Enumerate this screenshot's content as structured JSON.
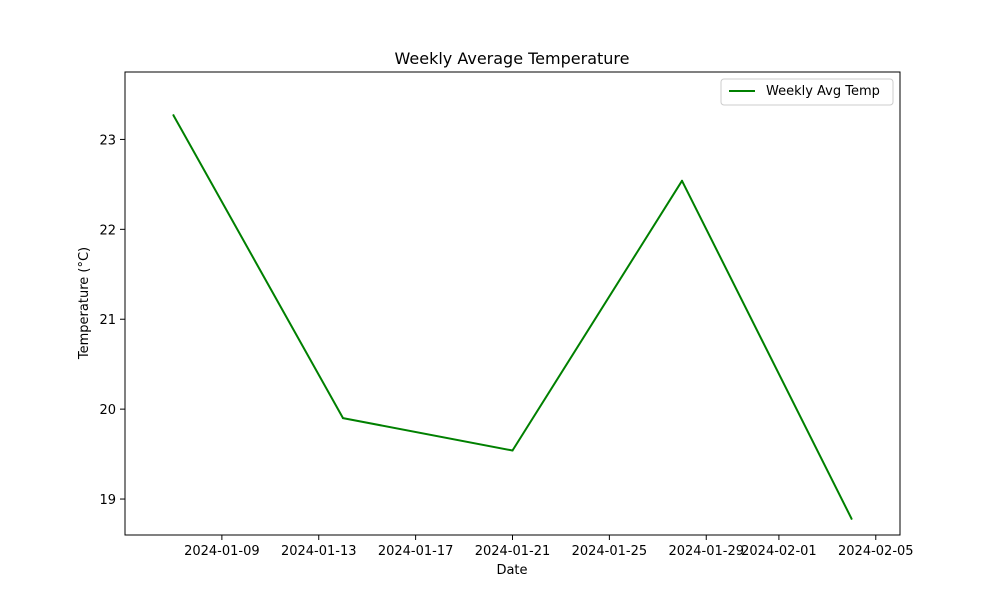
{
  "chart_data": {
    "type": "line",
    "title": "Weekly Average Temperature",
    "xlabel": "Date",
    "ylabel": "Temperature (°C)",
    "x_axis_type": "date",
    "xlim": [
      "2024-01-05",
      "2024-02-06"
    ],
    "ylim": [
      18.6,
      23.75
    ],
    "x_ticks": [
      "2024-01-09",
      "2024-01-13",
      "2024-01-17",
      "2024-01-21",
      "2024-01-25",
      "2024-01-29",
      "2024-02-01",
      "2024-02-05"
    ],
    "y_ticks": [
      19,
      20,
      21,
      22,
      23
    ],
    "grid": false,
    "legend_position": "top-right",
    "series": [
      {
        "name": "Weekly Avg Temp",
        "color": "#008000",
        "x": [
          "2024-01-07",
          "2024-01-14",
          "2024-01-21",
          "2024-01-28",
          "2024-02-04"
        ],
        "y": [
          23.27,
          19.9,
          19.54,
          22.54,
          18.78
        ]
      }
    ]
  }
}
